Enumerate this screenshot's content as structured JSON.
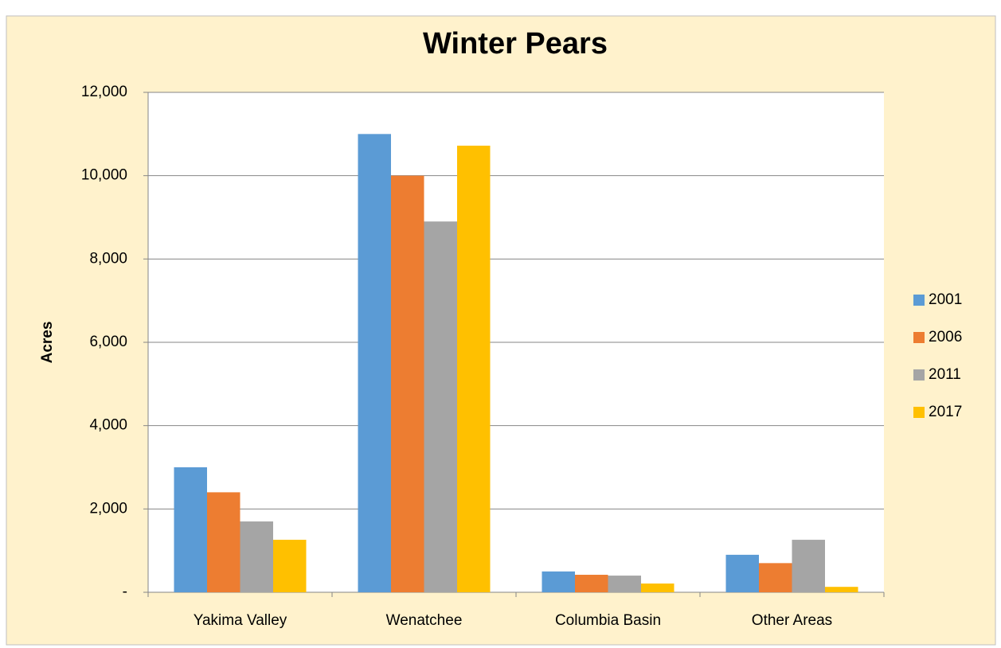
{
  "chart_data": {
    "type": "bar",
    "title": "Winter Pears",
    "y_label": "Acres",
    "categories": [
      "Yakima Valley",
      "Wenatchee",
      "Columbia Basin",
      "Other Areas"
    ],
    "series": [
      {
        "name": "2001",
        "color": "#5b9bd5",
        "values": [
          3000,
          11000,
          500,
          900
        ]
      },
      {
        "name": "2006",
        "color": "#ed7d31",
        "values": [
          2400,
          10000,
          420,
          700
        ]
      },
      {
        "name": "2011",
        "color": "#a5a5a5",
        "values": [
          1700,
          8900,
          400,
          1260
        ]
      },
      {
        "name": "2017",
        "color": "#ffc000",
        "values": [
          1260,
          10720,
          210,
          130
        ]
      }
    ],
    "ylim": [
      0,
      12000
    ],
    "yticks": [
      {
        "value": 0,
        "label": "-"
      },
      {
        "value": 2000,
        "label": "2,000"
      },
      {
        "value": 4000,
        "label": "4,000"
      },
      {
        "value": 6000,
        "label": "6,000"
      },
      {
        "value": 8000,
        "label": "8,000"
      },
      {
        "value": 10000,
        "label": "10,000"
      },
      {
        "value": 12000,
        "label": "12,000"
      }
    ],
    "grid": true,
    "legend": "right"
  }
}
